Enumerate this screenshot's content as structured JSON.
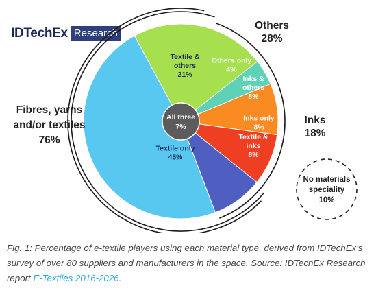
{
  "logo": {
    "brand": "IDTechEx",
    "badge": "Research"
  },
  "caption": {
    "text": "Fig. 1: Percentage of e-textile players using each material type, derived from IDTechEx's survey of over 80 suppliers and manufacturers in the space. Source: IDTechEx Research report ",
    "link": "E-Textiles 2016-2026",
    "end": "."
  },
  "chart_data": {
    "type": "pie",
    "title": "",
    "slices": [
      {
        "label": [
          "Others only",
          "4%"
        ],
        "value": 4,
        "color": "#5fd1b6",
        "text_color": "#ffffff"
      },
      {
        "label": [
          "Inks &",
          "others",
          "8%"
        ],
        "value": 8,
        "color": "#f98b22",
        "text_color": "#ffffff"
      },
      {
        "label": [
          "Inks only",
          "8%"
        ],
        "value": 8,
        "color": "#ee3f22",
        "text_color": "#ffffff"
      },
      {
        "label": [
          "Textile &",
          "inks",
          "8%"
        ],
        "value": 8,
        "color": "#4f5fc1",
        "text_color": "#ffffff"
      },
      {
        "label": [
          "Textile only",
          "45%"
        ],
        "value": 45,
        "color": "#58c8f1",
        "text_color": "#1e2a5a"
      },
      {
        "label": [
          "Textile &",
          "others",
          "21%"
        ],
        "value": 21,
        "color": "#a6e04f",
        "text_color": "#1e2a5a"
      }
    ],
    "center": {
      "label": [
        "All three",
        "7%"
      ],
      "value": 7,
      "color": "#5c5c5c"
    },
    "groups": [
      {
        "label": [
          "Others",
          "28%"
        ],
        "value": 28
      },
      {
        "label": [
          "Inks",
          "18%"
        ],
        "value": 18
      },
      {
        "label": [
          "Fibres, yarns",
          "and/or textiles",
          "76%"
        ],
        "value": 76
      }
    ],
    "outside": {
      "label": [
        "No materials",
        "speciality",
        "10%"
      ],
      "value": 10
    }
  }
}
